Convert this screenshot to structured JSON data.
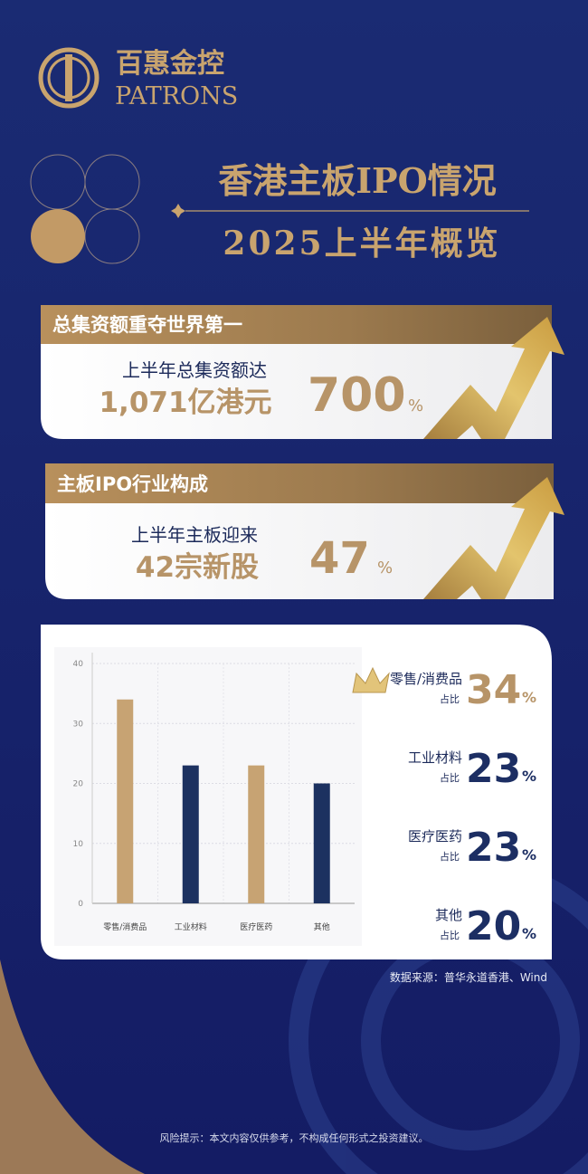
{
  "brand": {
    "name_cn": "百惠金控",
    "name_en": "PATRONS"
  },
  "header": {
    "title": "香港主板IPO情况",
    "subtitle": "2025上半年概览"
  },
  "cards": [
    {
      "heading": "总集资额重夺世界第一",
      "line1": "上半年总集资额达",
      "line2": "1,071亿港元",
      "stat": 700,
      "stat_unit": "%"
    },
    {
      "heading": "主板IPO行业构成",
      "line1": "上半年主板迎来",
      "line2": "42宗新股",
      "stat": 47,
      "stat_unit": "%"
    }
  ],
  "chart_data": {
    "type": "bar",
    "categories": [
      "零售/消费品",
      "工业材料",
      "医疗医药",
      "其他"
    ],
    "values": [
      34,
      23,
      23,
      20
    ],
    "colors": [
      "#c7a373",
      "#1c3160",
      "#c7a373",
      "#1c3160"
    ],
    "ylim": [
      0,
      40
    ],
    "yticks": [
      0,
      10,
      20,
      30,
      40
    ],
    "grid": true
  },
  "legend": {
    "share_label": "占比",
    "unit": "%"
  },
  "source": "数据来源：普华永道香港、Wind",
  "disclaimer": "风险提示：本文内容仅供参考，不构成任何形式之投资建议。"
}
